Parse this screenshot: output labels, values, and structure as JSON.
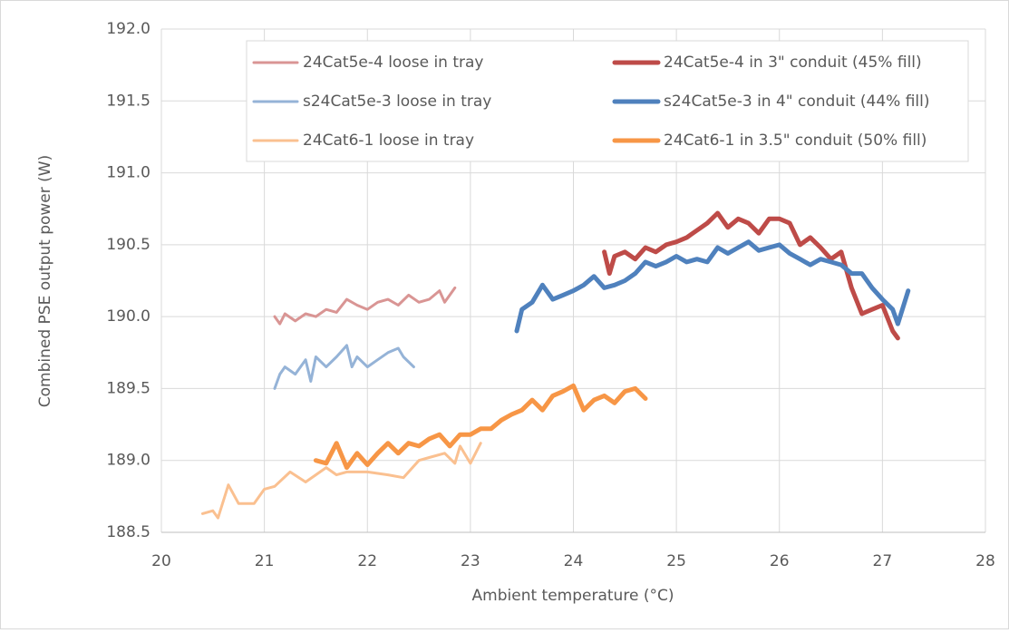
{
  "chart_data": {
    "type": "line",
    "x_label": "Ambient temperature (°C)",
    "y_label": "Combined PSE output power (W)",
    "xlim": [
      20,
      28
    ],
    "xticks": [
      20,
      21,
      22,
      23,
      24,
      25,
      26,
      27,
      28
    ],
    "ylim": [
      188.5,
      192.0
    ],
    "yticks": [
      {
        "value": 188.5,
        "label": "188.5"
      },
      {
        "value": 189.0,
        "label": "189.0"
      },
      {
        "value": 189.5,
        "label": "189.5"
      },
      {
        "value": 190.0,
        "label": "190.0"
      },
      {
        "value": 190.5,
        "label": "190.5"
      },
      {
        "value": 191.0,
        "label": "191.0"
      },
      {
        "value": 191.5,
        "label": "191.5"
      },
      {
        "value": 192.0,
        "label": "192.0"
      }
    ],
    "grid": true,
    "legend": "top-right",
    "series": [
      {
        "name": "24Cat5e-4 loose in tray",
        "color": "#d99594",
        "line_width": 3,
        "x": [
          21.1,
          21.15,
          21.2,
          21.3,
          21.4,
          21.5,
          21.6,
          21.7,
          21.8,
          21.9,
          22.0,
          22.1,
          22.2,
          22.3,
          22.4,
          22.5,
          22.6,
          22.7,
          22.75,
          22.85
        ],
        "values": [
          190.0,
          189.95,
          190.02,
          189.97,
          190.02,
          190.0,
          190.05,
          190.03,
          190.12,
          190.08,
          190.05,
          190.1,
          190.12,
          190.08,
          190.15,
          190.1,
          190.12,
          190.18,
          190.1,
          190.2
        ]
      },
      {
        "name": "24Cat5e-4 in 3\" conduit (45% fill)",
        "color": "#be4b48",
        "line_width": 5,
        "x": [
          24.3,
          24.35,
          24.4,
          24.5,
          24.6,
          24.7,
          24.8,
          24.9,
          25.0,
          25.1,
          25.2,
          25.3,
          25.4,
          25.5,
          25.6,
          25.7,
          25.8,
          25.9,
          26.0,
          26.1,
          26.2,
          26.3,
          26.4,
          26.5,
          26.6,
          26.7,
          26.8,
          26.9,
          27.0,
          27.1,
          27.15
        ],
        "values": [
          190.45,
          190.3,
          190.42,
          190.45,
          190.4,
          190.48,
          190.45,
          190.5,
          190.52,
          190.55,
          190.6,
          190.65,
          190.72,
          190.62,
          190.68,
          190.65,
          190.58,
          190.68,
          190.68,
          190.65,
          190.5,
          190.55,
          190.48,
          190.4,
          190.45,
          190.2,
          190.02,
          190.05,
          190.08,
          189.9,
          189.85
        ]
      },
      {
        "name": "s24Cat5e-3 loose in tray",
        "color": "#95b3d7",
        "line_width": 3,
        "x": [
          21.1,
          21.15,
          21.2,
          21.3,
          21.4,
          21.45,
          21.5,
          21.6,
          21.7,
          21.8,
          21.85,
          21.9,
          22.0,
          22.1,
          22.2,
          22.3,
          22.35,
          22.45
        ],
        "values": [
          189.5,
          189.6,
          189.65,
          189.6,
          189.7,
          189.55,
          189.72,
          189.65,
          189.72,
          189.8,
          189.65,
          189.72,
          189.65,
          189.7,
          189.75,
          189.78,
          189.72,
          189.65
        ]
      },
      {
        "name": "s24Cat5e-3 in 4\" conduit (44% fill)",
        "color": "#4f81bd",
        "line_width": 5,
        "x": [
          23.45,
          23.5,
          23.6,
          23.7,
          23.8,
          23.9,
          24.0,
          24.1,
          24.2,
          24.3,
          24.4,
          24.5,
          24.6,
          24.7,
          24.8,
          24.9,
          25.0,
          25.1,
          25.2,
          25.3,
          25.4,
          25.5,
          25.6,
          25.7,
          25.8,
          25.9,
          26.0,
          26.1,
          26.2,
          26.3,
          26.4,
          26.5,
          26.6,
          26.7,
          26.8,
          26.9,
          27.0,
          27.1,
          27.15,
          27.25
        ],
        "values": [
          189.9,
          190.05,
          190.1,
          190.22,
          190.12,
          190.15,
          190.18,
          190.22,
          190.28,
          190.2,
          190.22,
          190.25,
          190.3,
          190.38,
          190.35,
          190.38,
          190.42,
          190.38,
          190.4,
          190.38,
          190.48,
          190.44,
          190.48,
          190.52,
          190.46,
          190.48,
          190.5,
          190.44,
          190.4,
          190.36,
          190.4,
          190.38,
          190.36,
          190.3,
          190.3,
          190.2,
          190.12,
          190.05,
          189.95,
          190.18
        ]
      },
      {
        "name": "24Cat6-1 loose in tray",
        "color": "#fac090",
        "line_width": 3,
        "x": [
          20.4,
          20.5,
          20.55,
          20.65,
          20.75,
          20.9,
          21.0,
          21.1,
          21.25,
          21.4,
          21.5,
          21.6,
          21.7,
          21.8,
          22.0,
          22.2,
          22.35,
          22.5,
          22.6,
          22.75,
          22.85,
          22.9,
          23.0,
          23.1
        ],
        "values": [
          188.63,
          188.65,
          188.6,
          188.83,
          188.7,
          188.7,
          188.8,
          188.82,
          188.92,
          188.85,
          188.9,
          188.95,
          188.9,
          188.92,
          188.92,
          188.9,
          188.88,
          189.0,
          189.02,
          189.05,
          188.98,
          189.1,
          188.98,
          189.12
        ]
      },
      {
        "name": "24Cat6-1 in 3.5\" conduit (50% fill)",
        "color": "#f79646",
        "line_width": 5,
        "x": [
          21.5,
          21.6,
          21.7,
          21.8,
          21.9,
          22.0,
          22.1,
          22.2,
          22.3,
          22.4,
          22.5,
          22.6,
          22.7,
          22.8,
          22.9,
          23.0,
          23.1,
          23.2,
          23.3,
          23.4,
          23.5,
          23.6,
          23.7,
          23.8,
          23.9,
          24.0,
          24.1,
          24.2,
          24.3,
          24.4,
          24.5,
          24.6,
          24.7
        ],
        "values": [
          189.0,
          188.98,
          189.12,
          188.95,
          189.05,
          188.97,
          189.05,
          189.12,
          189.05,
          189.12,
          189.1,
          189.15,
          189.18,
          189.1,
          189.18,
          189.18,
          189.22,
          189.22,
          189.28,
          189.32,
          189.35,
          189.42,
          189.35,
          189.45,
          189.48,
          189.52,
          189.35,
          189.42,
          189.45,
          189.4,
          189.48,
          189.5,
          189.43
        ]
      }
    ]
  }
}
